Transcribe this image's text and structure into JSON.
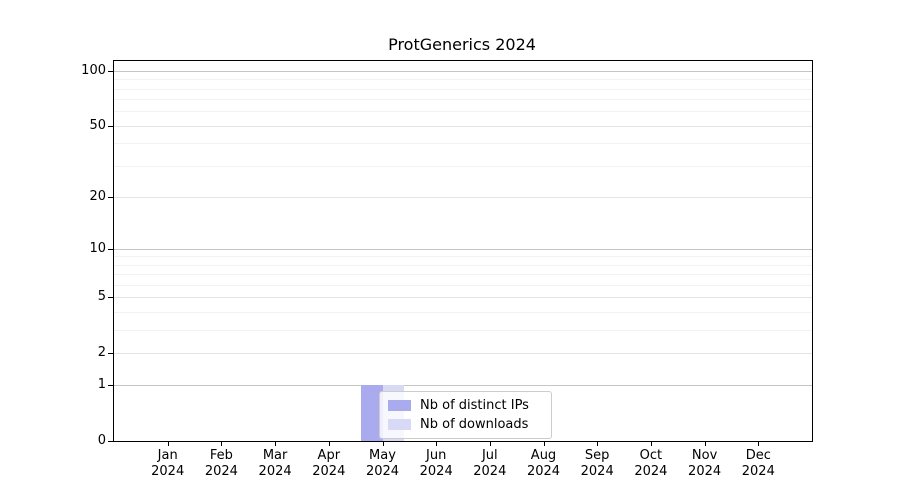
{
  "chart_data": {
    "type": "bar",
    "title": "ProtGenerics 2024",
    "xlabel": "",
    "ylabel": "",
    "categories": [
      "Jan 2024",
      "Feb 2024",
      "Mar 2024",
      "Apr 2024",
      "May 2024",
      "Jun 2024",
      "Jul 2024",
      "Aug 2024",
      "Sep 2024",
      "Oct 2024",
      "Nov 2024",
      "Dec 2024"
    ],
    "series": [
      {
        "name": "Nb of distinct IPs",
        "values": [
          0,
          0,
          0,
          0,
          1,
          0,
          0,
          0,
          0,
          0,
          0,
          0
        ],
        "color": "#aaaaee"
      },
      {
        "name": "Nb of downloads",
        "values": [
          0,
          0,
          0,
          0,
          1,
          0,
          0,
          0,
          0,
          0,
          0,
          0
        ],
        "color": "#d8d8f7"
      }
    ],
    "y_scale": "log10(1+x)",
    "y_ticks": [
      0,
      1,
      2,
      5,
      10,
      20,
      50,
      100
    ],
    "y_major_ticks": [
      1,
      10,
      100
    ],
    "y_minor_gridlines": [
      3,
      4,
      6,
      7,
      8,
      9,
      30,
      40,
      60,
      70,
      80,
      90
    ],
    "ylim": [
      0,
      113
    ],
    "grid": "horizontal",
    "legend_position": "inside-lower-center"
  },
  "colors": {
    "axis": "#000000",
    "grid_major": "#c6c6c6",
    "grid_mid": "#e4e4e4",
    "grid_minor": "#f2f2f2",
    "legend_border": "#cccccc"
  }
}
